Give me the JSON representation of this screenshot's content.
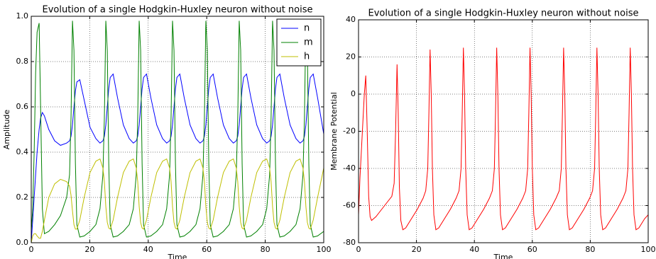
{
  "chart_data": [
    {
      "type": "line",
      "title": "Evolution of a single Hodgkin-Huxley neuron without noise",
      "x_label": "Time",
      "y_label": "Amplitude",
      "xlim": [
        0,
        100
      ],
      "xticks": [
        0,
        20,
        40,
        60,
        80,
        100
      ],
      "ylim": [
        0,
        1
      ],
      "yticks": [
        {
          "value": 0,
          "label": "0.0"
        },
        0.2,
        0.4,
        0.6,
        0.8,
        {
          "value": 1,
          "label": "1.0"
        }
      ],
      "grid": true,
      "legend": "upper right",
      "x": [
        0,
        0.5,
        1,
        1.5,
        2,
        2.7,
        3.2,
        3.8,
        4.5,
        6,
        8,
        10,
        12.1,
        13.1,
        13.6,
        14.1,
        14.6,
        15.1,
        15.6,
        16.6,
        18.1,
        20.1,
        22.1,
        23.5,
        24.5,
        25,
        25.5,
        26,
        26.5,
        27,
        28,
        29.5,
        31.5,
        33.5,
        34.9,
        35.9,
        36.4,
        36.9,
        37.4,
        37.9,
        38.4,
        39.4,
        40.9,
        42.9,
        44.9,
        46.3,
        47.3,
        47.8,
        48.3,
        48.8,
        49.3,
        49.8,
        50.8,
        52.3,
        54.3,
        56.3,
        57.7,
        58.7,
        59.2,
        59.7,
        60.2,
        60.7,
        61.2,
        62.2,
        63.7,
        65.7,
        67.7,
        69.1,
        70.1,
        70.6,
        71.1,
        71.6,
        72.1,
        72.6,
        73.6,
        75.1,
        77.1,
        79.1,
        80.5,
        81.5,
        82,
        82.5,
        83,
        83.5,
        84,
        85,
        86.5,
        88.5,
        90.5,
        91.9,
        92.9,
        93.4,
        93.9,
        94.4,
        94.9,
        95.4,
        96.4,
        97.9,
        100
      ],
      "series": [
        {
          "name": "n",
          "color": "#0000ff",
          "values": [
            0,
            0.1,
            0.2,
            0.3,
            0.4,
            0.5,
            0.55,
            0.575,
            0.56,
            0.5,
            0.45,
            0.43,
            0.44,
            0.45,
            0.47,
            0.52,
            0.6,
            0.67,
            0.71,
            0.72,
            0.63,
            0.51,
            0.46,
            0.44,
            0.45,
            0.47,
            0.52,
            0.6,
            0.68,
            0.73,
            0.745,
            0.64,
            0.52,
            0.46,
            0.44,
            0.45,
            0.47,
            0.52,
            0.6,
            0.68,
            0.73,
            0.745,
            0.64,
            0.52,
            0.46,
            0.44,
            0.45,
            0.47,
            0.52,
            0.6,
            0.68,
            0.73,
            0.745,
            0.64,
            0.52,
            0.46,
            0.44,
            0.45,
            0.47,
            0.52,
            0.6,
            0.68,
            0.73,
            0.745,
            0.64,
            0.52,
            0.46,
            0.44,
            0.45,
            0.47,
            0.52,
            0.6,
            0.68,
            0.73,
            0.745,
            0.64,
            0.52,
            0.46,
            0.44,
            0.45,
            0.47,
            0.52,
            0.6,
            0.68,
            0.73,
            0.745,
            0.64,
            0.52,
            0.46,
            0.44,
            0.45,
            0.47,
            0.52,
            0.6,
            0.68,
            0.73,
            0.745,
            0.64,
            0.48
          ]
        },
        {
          "name": "m",
          "color": "#008000",
          "values": [
            0.05,
            0.15,
            0.4,
            0.75,
            0.93,
            0.97,
            0.6,
            0.15,
            0.04,
            0.05,
            0.08,
            0.12,
            0.2,
            0.3,
            0.55,
            0.98,
            0.85,
            0.35,
            0.08,
            0.025,
            0.03,
            0.05,
            0.08,
            0.15,
            0.3,
            0.55,
            0.98,
            0.85,
            0.35,
            0.08,
            0.025,
            0.03,
            0.05,
            0.08,
            0.15,
            0.3,
            0.55,
            0.98,
            0.85,
            0.35,
            0.08,
            0.025,
            0.03,
            0.05,
            0.08,
            0.15,
            0.3,
            0.55,
            0.98,
            0.85,
            0.35,
            0.08,
            0.025,
            0.03,
            0.05,
            0.08,
            0.15,
            0.3,
            0.55,
            0.98,
            0.85,
            0.35,
            0.08,
            0.025,
            0.03,
            0.05,
            0.08,
            0.15,
            0.3,
            0.55,
            0.98,
            0.85,
            0.35,
            0.08,
            0.025,
            0.03,
            0.05,
            0.08,
            0.15,
            0.3,
            0.55,
            0.98,
            0.85,
            0.35,
            0.08,
            0.025,
            0.03,
            0.05,
            0.08,
            0.15,
            0.3,
            0.55,
            0.98,
            0.85,
            0.35,
            0.08,
            0.025,
            0.03,
            0.05
          ]
        },
        {
          "name": "h",
          "color": "#bfbf00",
          "values": [
            0,
            0.03,
            0.04,
            0.04,
            0.03,
            0.02,
            0.02,
            0.05,
            0.1,
            0.2,
            0.26,
            0.28,
            0.27,
            0.25,
            0.21,
            0.14,
            0.08,
            0.06,
            0.06,
            0.1,
            0.2,
            0.31,
            0.36,
            0.37,
            0.33,
            0.27,
            0.16,
            0.09,
            0.065,
            0.06,
            0.1,
            0.2,
            0.31,
            0.36,
            0.37,
            0.33,
            0.27,
            0.16,
            0.09,
            0.065,
            0.06,
            0.1,
            0.2,
            0.31,
            0.36,
            0.37,
            0.33,
            0.27,
            0.16,
            0.09,
            0.065,
            0.06,
            0.1,
            0.2,
            0.31,
            0.36,
            0.37,
            0.33,
            0.27,
            0.16,
            0.09,
            0.065,
            0.06,
            0.1,
            0.2,
            0.31,
            0.36,
            0.37,
            0.33,
            0.27,
            0.16,
            0.09,
            0.065,
            0.06,
            0.1,
            0.2,
            0.31,
            0.36,
            0.37,
            0.33,
            0.27,
            0.16,
            0.09,
            0.065,
            0.06,
            0.1,
            0.2,
            0.31,
            0.36,
            0.37,
            0.33,
            0.27,
            0.16,
            0.09,
            0.065,
            0.06,
            0.1,
            0.2,
            0.33
          ]
        }
      ]
    },
    {
      "type": "line",
      "title": "Evolution of a single Hodgkin-Huxley neuron without noise",
      "x_label": "Time",
      "y_label": "Membrane Potential",
      "xlim": [
        0,
        100
      ],
      "xticks": [
        0,
        20,
        40,
        60,
        80,
        100
      ],
      "ylim": [
        -80,
        40
      ],
      "yticks": [
        -80,
        -60,
        -40,
        -20,
        0,
        20,
        40
      ],
      "grid": true,
      "x": [
        0,
        0.5,
        1,
        1.5,
        2,
        2.5,
        3,
        3.5,
        4,
        4.5,
        6,
        8,
        10,
        11.5,
        12.3,
        12.8,
        13.3,
        13.7,
        14.1,
        14.6,
        15.3,
        16.3,
        18.3,
        20.3,
        22.3,
        23.2,
        23.9,
        24.3,
        24.7,
        25.1,
        25.5,
        26,
        26.7,
        27.7,
        29.7,
        31.7,
        33.7,
        34.7,
        35.4,
        35.8,
        36.2,
        36.6,
        37,
        37.5,
        38.2,
        39.2,
        41.2,
        43.2,
        45.2,
        46.2,
        46.9,
        47.3,
        47.7,
        48.1,
        48.5,
        49,
        49.7,
        50.7,
        52.7,
        54.7,
        56.7,
        57.7,
        58.4,
        58.8,
        59.2,
        59.6,
        60,
        60.5,
        61.2,
        62.2,
        64.2,
        66.2,
        68.2,
        69.3,
        70,
        70.4,
        70.8,
        71.2,
        71.6,
        72.1,
        72.8,
        73.8,
        75.8,
        77.8,
        79.8,
        80.8,
        81.5,
        81.9,
        82.3,
        82.7,
        83.1,
        83.6,
        84.3,
        85.3,
        87.3,
        89.3,
        91.3,
        92.3,
        93,
        93.4,
        93.8,
        94.2,
        94.6,
        95.1,
        95.8,
        96.8,
        98.8,
        100
      ],
      "color": "#ff0000",
      "values": [
        -65,
        -45,
        -30,
        -15,
        0,
        10,
        -20,
        -55,
        -66,
        -68,
        -66,
        -62,
        -58,
        -55,
        -48,
        -20,
        16,
        -10,
        -50,
        -68,
        -73,
        -72,
        -67,
        -62,
        -56,
        -52,
        -40,
        -10,
        24,
        0,
        -40,
        -65,
        -73,
        -72,
        -67,
        -62,
        -56,
        -52,
        -40,
        -10,
        25,
        0,
        -40,
        -65,
        -73,
        -72,
        -67,
        -62,
        -56,
        -52,
        -40,
        -10,
        25,
        0,
        -40,
        -65,
        -73,
        -72,
        -67,
        -62,
        -56,
        -52,
        -40,
        -10,
        25,
        0,
        -40,
        -65,
        -73,
        -72,
        -67,
        -62,
        -56,
        -52,
        -40,
        -10,
        25,
        0,
        -40,
        -65,
        -73,
        -72,
        -67,
        -62,
        -56,
        -52,
        -40,
        -10,
        25,
        0,
        -40,
        -65,
        -73,
        -72,
        -67,
        -62,
        -56,
        -52,
        -40,
        -10,
        25,
        0,
        -40,
        -65,
        -73,
        -72,
        -67,
        -65
      ]
    }
  ]
}
